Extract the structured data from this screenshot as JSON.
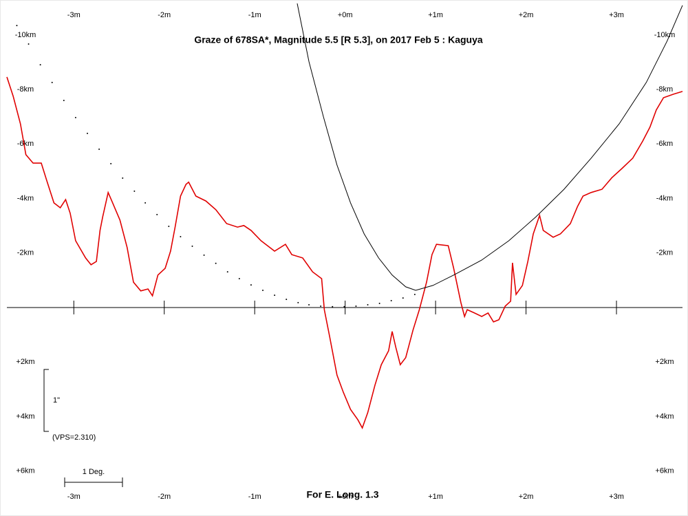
{
  "chart_data": {
    "type": "line",
    "title": "Graze of  678SA*,  Magnitude 5.5 [R 5.3],  on 2017 Feb  5  :  Kaguya",
    "footer": "For E. Long. 1.3",
    "annotations": [
      "1\"",
      "(VPS=2.310)",
      "1 Deg."
    ],
    "xlim": [
      -3.74,
      3.73
    ],
    "ylim": [
      -11.16,
      7.4
    ],
    "xticks": [
      {
        "value": -3,
        "label": "-3m"
      },
      {
        "value": -2,
        "label": "-2m"
      },
      {
        "value": -1,
        "label": "-1m"
      },
      {
        "value": 0,
        "label": "+0m"
      },
      {
        "value": 1,
        "label": "+1m"
      },
      {
        "value": 2,
        "label": "+2m"
      },
      {
        "value": 3,
        "label": "+3m"
      }
    ],
    "yticks": [
      {
        "value": -10,
        "label": "-10km"
      },
      {
        "value": -8,
        "label": "-8km"
      },
      {
        "value": -6,
        "label": "-6km"
      },
      {
        "value": -4,
        "label": "-4km"
      },
      {
        "value": -2,
        "label": "-2km"
      },
      {
        "value": 2,
        "label": "+2km"
      },
      {
        "value": 4,
        "label": "+4km"
      },
      {
        "value": 6,
        "label": "+6km"
      }
    ],
    "series": [
      {
        "color": "#e00000",
        "style": "solid",
        "x": [
          -3.74,
          -3.67,
          -3.59,
          -3.53,
          -3.45,
          -3.36,
          -3.3,
          -3.22,
          -3.15,
          -3.09,
          -3.04,
          -2.98,
          -2.87,
          -2.81,
          -2.75,
          -2.71,
          -2.68,
          -2.62,
          -2.58,
          -2.49,
          -2.41,
          -2.34,
          -2.26,
          -2.18,
          -2.13,
          -2.07,
          -1.99,
          -1.93,
          -1.88,
          -1.82,
          -1.76,
          -1.73,
          -1.65,
          -1.54,
          -1.43,
          -1.31,
          -1.19,
          -1.12,
          -1.04,
          -0.93,
          -0.78,
          -0.66,
          -0.59,
          -0.47,
          -0.36,
          -0.26,
          -0.23,
          -0.17,
          -0.09,
          -0.02,
          0.06,
          0.14,
          0.19,
          0.25,
          0.33,
          0.4,
          0.48,
          0.52,
          0.56,
          0.61,
          0.67,
          0.75,
          0.82,
          0.9,
          0.96,
          1.01,
          1.14,
          1.2,
          1.28,
          1.32,
          1.35,
          1.43,
          1.51,
          1.58,
          1.64,
          1.7,
          1.77,
          1.83,
          1.85,
          1.89,
          1.96,
          2.02,
          2.08,
          2.15,
          2.19,
          2.3,
          2.38,
          2.49,
          2.57,
          2.63,
          2.72,
          2.84,
          2.95,
          3.06,
          3.18,
          3.29,
          3.37,
          3.44,
          3.52,
          3.63,
          3.73
        ],
        "values": [
          -8.46,
          -7.75,
          -6.74,
          -5.61,
          -5.3,
          -5.3,
          -4.67,
          -3.84,
          -3.66,
          -3.96,
          -3.46,
          -2.45,
          -1.82,
          -1.57,
          -1.69,
          -2.83,
          -3.33,
          -4.22,
          -3.91,
          -3.21,
          -2.2,
          -0.93,
          -0.61,
          -0.68,
          -0.43,
          -1.19,
          -1.44,
          -2.07,
          -2.95,
          -4.09,
          -4.52,
          -4.6,
          -4.09,
          -3.91,
          -3.59,
          -3.08,
          -2.95,
          -3.01,
          -2.83,
          -2.45,
          -2.07,
          -2.32,
          -1.94,
          -1.82,
          -1.31,
          -1.06,
          0.08,
          1.09,
          2.48,
          3.11,
          3.74,
          4.12,
          4.42,
          3.86,
          2.85,
          2.1,
          1.59,
          0.88,
          1.46,
          2.1,
          1.84,
          0.83,
          0.08,
          -0.93,
          -1.94,
          -2.32,
          -2.27,
          -1.44,
          -0.18,
          0.33,
          0.08,
          0.2,
          0.33,
          0.2,
          0.53,
          0.45,
          -0.05,
          -0.23,
          -1.64,
          -0.48,
          -0.81,
          -1.69,
          -2.7,
          -3.38,
          -2.83,
          -2.58,
          -2.7,
          -3.08,
          -3.71,
          -4.09,
          -4.22,
          -4.34,
          -4.77,
          -5.1,
          -5.48,
          -6.11,
          -6.62,
          -7.25,
          -7.7,
          -7.83,
          -7.93
        ]
      },
      {
        "color": "#000000",
        "style": "solid",
        "x": [
          -0.53,
          -0.4,
          -0.24,
          -0.09,
          0.06,
          0.21,
          0.37,
          0.52,
          0.67,
          0.78,
          0.97,
          1.2,
          1.51,
          1.81,
          2.11,
          2.42,
          2.72,
          3.03,
          3.33,
          3.56,
          3.73
        ],
        "values": [
          -11.16,
          -9.02,
          -7.0,
          -5.23,
          -3.84,
          -2.7,
          -1.82,
          -1.19,
          -0.76,
          -0.63,
          -0.81,
          -1.19,
          -1.74,
          -2.45,
          -3.33,
          -4.34,
          -5.48,
          -6.74,
          -8.26,
          -9.78,
          -11.09
        ]
      },
      {
        "color": "#000000",
        "style": "dotted",
        "x": [
          -3.63,
          -3.5,
          -3.37,
          -3.24,
          -3.11,
          -2.98,
          -2.85,
          -2.72,
          -2.59,
          -2.46,
          -2.33,
          -2.21,
          -2.08,
          -1.95,
          -1.82,
          -1.69,
          -1.56,
          -1.43,
          -1.3,
          -1.17,
          -1.04,
          -0.91,
          -0.78,
          -0.65,
          -0.52,
          -0.4,
          -0.27,
          -0.14,
          -0.01,
          0.12,
          0.25,
          0.38,
          0.51,
          0.64,
          0.77
        ],
        "values": [
          -10.35,
          -9.67,
          -8.91,
          -8.26,
          -7.6,
          -6.97,
          -6.39,
          -5.81,
          -5.28,
          -4.75,
          -4.27,
          -3.84,
          -3.41,
          -2.98,
          -2.6,
          -2.25,
          -1.92,
          -1.62,
          -1.31,
          -1.06,
          -0.83,
          -0.63,
          -0.45,
          -0.3,
          -0.18,
          -0.1,
          -0.05,
          -0.03,
          -0.03,
          -0.05,
          -0.1,
          -0.15,
          -0.25,
          -0.35,
          -0.48
        ]
      }
    ]
  }
}
